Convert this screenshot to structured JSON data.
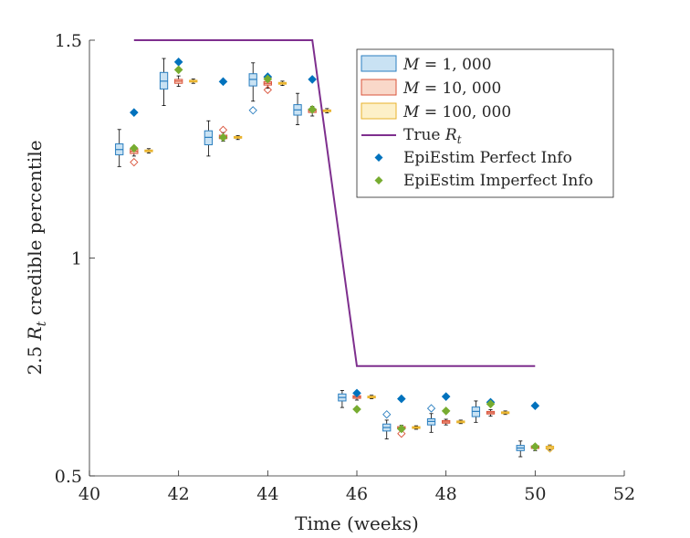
{
  "chart_data": {
    "type": "box-scatter",
    "title": "",
    "xlabel": "Time  (weeks)",
    "ylabel": "2.5 R_t credible percentile",
    "ylabel_parts": {
      "prefix": "2.5 ",
      "var": "R",
      "sub": "t",
      "suffix": " credible percentile"
    },
    "xlim": [
      40,
      52
    ],
    "ylim": [
      0.5,
      1.5
    ],
    "xticks": [
      "40",
      "42",
      "44",
      "46",
      "48",
      "50",
      "52"
    ],
    "yticks": [
      "0.5",
      "1",
      "1.5"
    ],
    "x_tick_values": [
      40,
      42,
      44,
      46,
      48,
      50,
      52
    ],
    "y_tick_values": [
      0.5,
      1,
      1.5
    ],
    "grid": false,
    "legend_position": "top-right",
    "colors": {
      "m1k_fill": "#c9e2f3",
      "m1k_edge": "#2b7fc0",
      "m10k_fill": "#f9d8c9",
      "m10k_edge": "#d9533a",
      "m100k_fill": "#fdf0c8",
      "m100k_edge": "#e8b22b",
      "true_rt": "#7e2f8e",
      "perfect": "#0072bd",
      "imperfect": "#77ac30"
    },
    "legend": [
      {
        "key": "m1k",
        "label": "M = 1, 000",
        "var": "M",
        "value": "1, 000"
      },
      {
        "key": "m10k",
        "label": "M = 10, 000",
        "var": "M",
        "value": "10, 000"
      },
      {
        "key": "m100k",
        "label": "M = 100, 000",
        "var": "M",
        "value": "100, 000"
      },
      {
        "key": "true",
        "label": "True R_t",
        "prefix": "True ",
        "var": "R",
        "sub": "t"
      },
      {
        "key": "perfect",
        "label": "EpiEstim Perfect Info"
      },
      {
        "key": "imperfect",
        "label": "EpiEstim Imperfect Info"
      }
    ],
    "true_rt": {
      "x": [
        41,
        45,
        46,
        50
      ],
      "y": [
        1.5,
        1.5,
        0.752,
        0.752
      ]
    },
    "weeks": [
      41,
      42,
      43,
      44,
      45,
      46,
      47,
      48,
      49,
      50
    ],
    "boxplots": {
      "m1k": [
        {
          "q1": 1.237,
          "med": 1.249,
          "q3": 1.262,
          "wlo": 1.21,
          "whi": 1.295,
          "out": []
        },
        {
          "q1": 1.388,
          "med": 1.406,
          "q3": 1.426,
          "wlo": 1.35,
          "whi": 1.458,
          "out": []
        },
        {
          "q1": 1.26,
          "med": 1.277,
          "q3": 1.292,
          "wlo": 1.234,
          "whi": 1.315,
          "out": []
        },
        {
          "q1": 1.395,
          "med": 1.41,
          "q3": 1.423,
          "wlo": 1.36,
          "whi": 1.448,
          "out": [
            1.339
          ]
        },
        {
          "q1": 1.328,
          "med": 1.34,
          "q3": 1.352,
          "wlo": 1.306,
          "whi": 1.378,
          "out": []
        },
        {
          "q1": 0.672,
          "med": 0.68,
          "q3": 0.688,
          "wlo": 0.657,
          "whi": 0.696,
          "out": []
        },
        {
          "q1": 0.603,
          "med": 0.611,
          "q3": 0.619,
          "wlo": 0.585,
          "whi": 0.628,
          "out": [
            0.641
          ]
        },
        {
          "q1": 0.617,
          "med": 0.625,
          "q3": 0.631,
          "wlo": 0.6,
          "whi": 0.643,
          "out": [
            0.655
          ]
        },
        {
          "q1": 0.636,
          "med": 0.648,
          "q3": 0.658,
          "wlo": 0.623,
          "whi": 0.672,
          "out": []
        },
        {
          "q1": 0.558,
          "med": 0.564,
          "q3": 0.57,
          "wlo": 0.544,
          "whi": 0.58,
          "out": []
        }
      ],
      "m10k": [
        {
          "q1": 1.24,
          "med": 1.245,
          "q3": 1.25,
          "wlo": 1.234,
          "whi": 1.256,
          "out": [
            1.22
          ]
        },
        {
          "q1": 1.401,
          "med": 1.406,
          "q3": 1.41,
          "wlo": 1.394,
          "whi": 1.418,
          "out": []
        },
        {
          "q1": 1.274,
          "med": 1.278,
          "q3": 1.282,
          "wlo": 1.268,
          "whi": 1.288,
          "out": [
            1.294
          ]
        },
        {
          "q1": 1.397,
          "med": 1.401,
          "q3": 1.405,
          "wlo": 1.39,
          "whi": 1.411,
          "out": [
            1.386,
            1.415
          ]
        },
        {
          "q1": 1.334,
          "med": 1.338,
          "q3": 1.342,
          "wlo": 1.326,
          "whi": 1.348,
          "out": []
        },
        {
          "q1": 0.678,
          "med": 0.681,
          "q3": 0.684,
          "wlo": 0.674,
          "whi": 0.687,
          "out": []
        },
        {
          "q1": 0.608,
          "med": 0.61,
          "q3": 0.613,
          "wlo": 0.604,
          "whi": 0.616,
          "out": [
            0.597
          ]
        },
        {
          "q1": 0.621,
          "med": 0.624,
          "q3": 0.627,
          "wlo": 0.617,
          "whi": 0.63,
          "out": []
        },
        {
          "q1": 0.642,
          "med": 0.645,
          "q3": 0.648,
          "wlo": 0.637,
          "whi": 0.652,
          "out": []
        },
        {
          "q1": 0.563,
          "med": 0.566,
          "q3": 0.569,
          "wlo": 0.558,
          "whi": 0.572,
          "out": []
        }
      ],
      "m100k": [
        {
          "q1": 1.244,
          "med": 1.246,
          "q3": 1.248,
          "wlo": 1.241,
          "whi": 1.251,
          "out": []
        },
        {
          "q1": 1.404,
          "med": 1.406,
          "q3": 1.408,
          "wlo": 1.401,
          "whi": 1.411,
          "out": []
        },
        {
          "q1": 1.275,
          "med": 1.277,
          "q3": 1.279,
          "wlo": 1.272,
          "whi": 1.281,
          "out": []
        },
        {
          "q1": 1.399,
          "med": 1.401,
          "q3": 1.403,
          "wlo": 1.396,
          "whi": 1.406,
          "out": []
        },
        {
          "q1": 1.336,
          "med": 1.338,
          "q3": 1.34,
          "wlo": 1.333,
          "whi": 1.343,
          "out": []
        },
        {
          "q1": 0.679,
          "med": 0.681,
          "q3": 0.683,
          "wlo": 0.677,
          "whi": 0.685,
          "out": []
        },
        {
          "q1": 0.609,
          "med": 0.611,
          "q3": 0.613,
          "wlo": 0.607,
          "whi": 0.615,
          "out": []
        },
        {
          "q1": 0.622,
          "med": 0.624,
          "q3": 0.626,
          "wlo": 0.62,
          "whi": 0.628,
          "out": []
        },
        {
          "q1": 0.643,
          "med": 0.645,
          "q3": 0.647,
          "wlo": 0.641,
          "whi": 0.649,
          "out": []
        },
        {
          "q1": 0.562,
          "med": 0.565,
          "q3": 0.568,
          "wlo": 0.559,
          "whi": 0.571,
          "out": [
            0.563
          ]
        }
      ]
    },
    "epiestim_perfect": {
      "x": [
        41,
        42,
        43,
        44,
        45,
        46,
        47,
        48,
        49,
        50
      ],
      "y": [
        1.334,
        1.45,
        1.405,
        1.416,
        1.41,
        0.69,
        0.677,
        0.682,
        0.669,
        0.661
      ]
    },
    "epiestim_imperfect": {
      "x": [
        41,
        42,
        43,
        44,
        45,
        46,
        47,
        48,
        49,
        50
      ],
      "y": [
        1.252,
        1.432,
        1.277,
        1.411,
        1.341,
        0.653,
        0.608,
        0.649,
        0.665,
        0.567
      ]
    }
  }
}
